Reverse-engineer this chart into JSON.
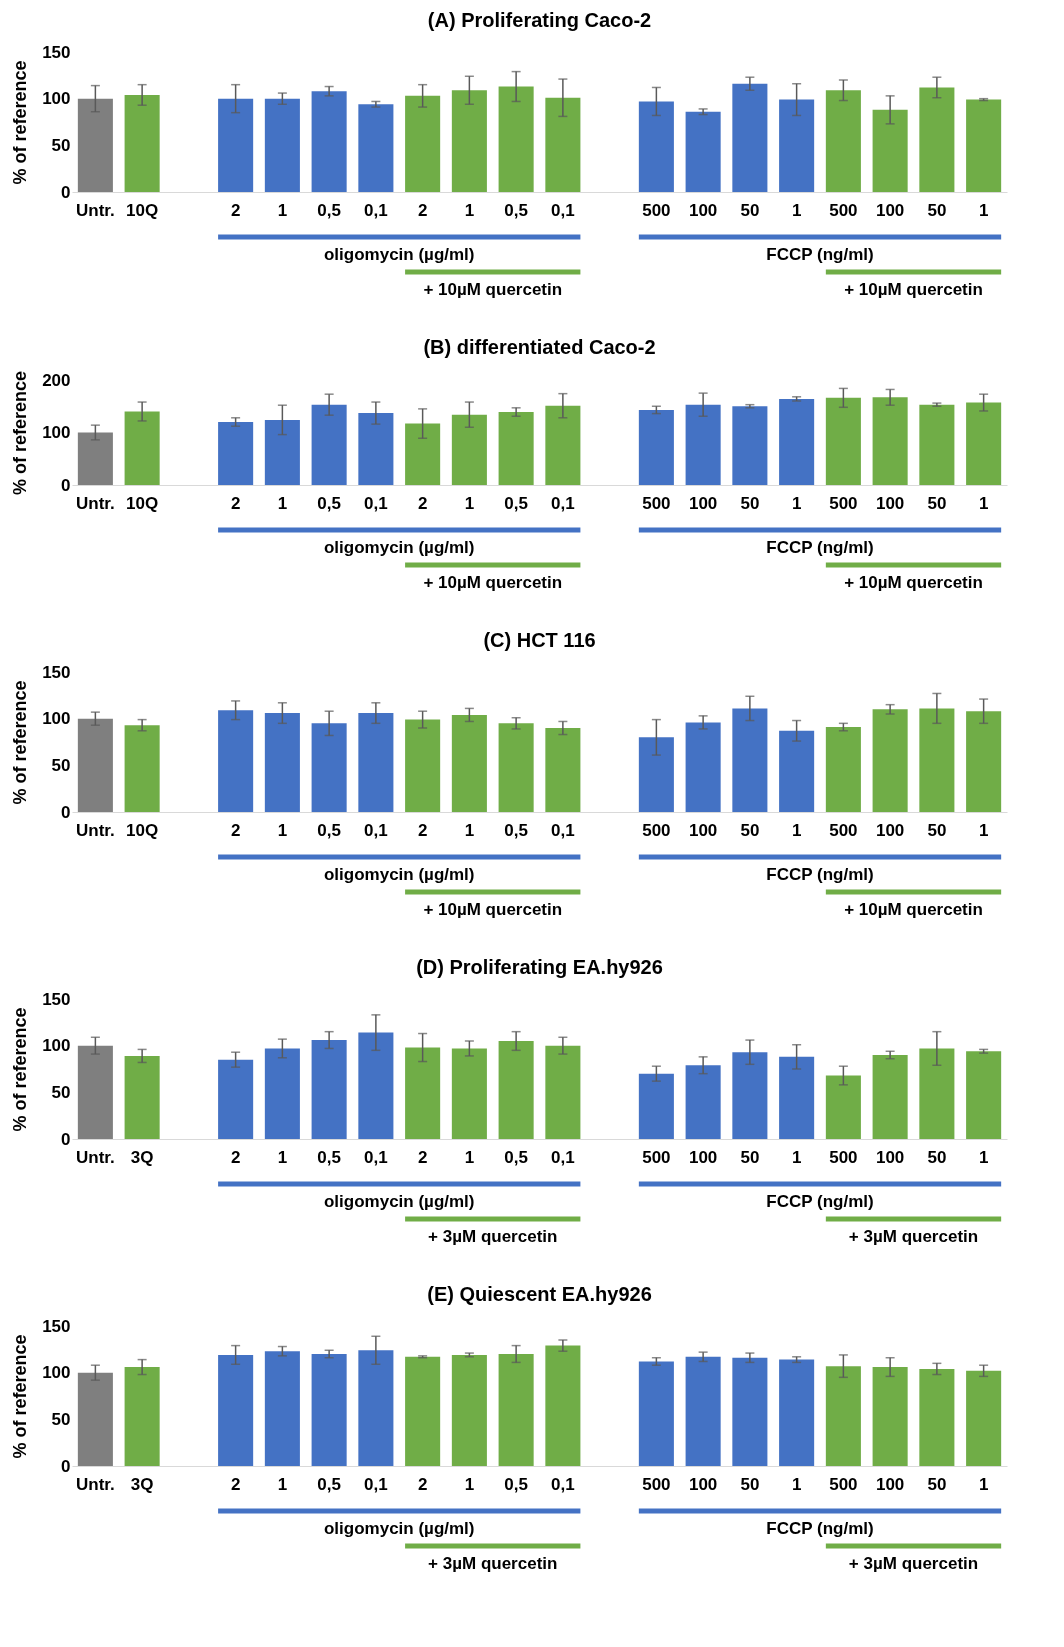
{
  "chart_data": [
    {
      "type": "bar",
      "title": "(A) Proliferating  Caco-2",
      "ylabel": "% of reference",
      "categories": [
        "Untr.",
        "10Q",
        null,
        "2",
        "1",
        "0,5",
        "0,1",
        "2",
        "1",
        "0,5",
        "0,1",
        null,
        "500",
        "100",
        "50",
        "1",
        "500",
        "100",
        "50",
        "1"
      ],
      "values": [
        100,
        104,
        null,
        100,
        100,
        108,
        94,
        103,
        109,
        113,
        101,
        null,
        97,
        86,
        116,
        99,
        109,
        88,
        112,
        99
      ],
      "errors": [
        14,
        11,
        null,
        15,
        6,
        5,
        3,
        12,
        15,
        16,
        20,
        null,
        15,
        3,
        7,
        17,
        11,
        15,
        11,
        1
      ],
      "colors": [
        "#7f7f7f",
        "#70ad47",
        null,
        "#4472c4",
        "#4472c4",
        "#4472c4",
        "#4472c4",
        "#70ad47",
        "#70ad47",
        "#70ad47",
        "#70ad47",
        null,
        "#4472c4",
        "#4472c4",
        "#4472c4",
        "#4472c4",
        "#70ad47",
        "#70ad47",
        "#70ad47",
        "#70ad47"
      ],
      "ylim": [
        0,
        150
      ],
      "yticks": [
        0,
        50,
        100,
        150
      ],
      "annotations": [
        "oligomycin (µg/ml)",
        "+ 10µM quercetin",
        "FCCP (ng/ml)",
        "+ 10µM quercetin"
      ]
    },
    {
      "type": "bar",
      "title": "(B) differentiated Caco-2",
      "ylabel": "% of reference",
      "categories": [
        "Untr.",
        "10Q",
        null,
        "2",
        "1",
        "0,5",
        "0,1",
        "2",
        "1",
        "0,5",
        "0,1",
        null,
        "500",
        "100",
        "50",
        "1",
        "500",
        "100",
        "50",
        "1"
      ],
      "values": [
        100,
        140,
        null,
        120,
        124,
        153,
        137,
        117,
        134,
        139,
        151,
        null,
        143,
        153,
        150,
        164,
        166,
        167,
        153,
        157
      ],
      "errors": [
        14,
        18,
        null,
        8,
        28,
        20,
        21,
        28,
        24,
        8,
        23,
        null,
        7,
        22,
        3,
        4,
        18,
        15,
        3,
        16
      ],
      "colors": [
        "#7f7f7f",
        "#70ad47",
        null,
        "#4472c4",
        "#4472c4",
        "#4472c4",
        "#4472c4",
        "#70ad47",
        "#70ad47",
        "#70ad47",
        "#70ad47",
        null,
        "#4472c4",
        "#4472c4",
        "#4472c4",
        "#4472c4",
        "#70ad47",
        "#70ad47",
        "#70ad47",
        "#70ad47"
      ],
      "ylim": [
        0,
        200
      ],
      "yticks": [
        0,
        100,
        200
      ],
      "annotations": [
        "oligomycin  (µg/ml)",
        "+ 10µM quercetin",
        "FCCP (ng/ml)",
        "+ 10µM quercetin"
      ]
    },
    {
      "type": "bar",
      "title": "(C) HCT 116",
      "ylabel": "% of reference",
      "categories": [
        "Untr.",
        "10Q",
        null,
        "2",
        "1",
        "0,5",
        "0,1",
        "2",
        "1",
        "0,5",
        "0,1",
        null,
        "500",
        "100",
        "50",
        "1",
        "500",
        "100",
        "50",
        "1"
      ],
      "values": [
        100,
        93,
        null,
        109,
        106,
        95,
        106,
        99,
        104,
        95,
        90,
        null,
        80,
        96,
        111,
        87,
        91,
        110,
        111,
        108
      ],
      "errors": [
        7,
        6,
        null,
        10,
        11,
        13,
        11,
        9,
        7,
        6,
        7,
        null,
        19,
        7,
        13,
        11,
        4,
        5,
        16,
        13
      ],
      "colors": [
        "#7f7f7f",
        "#70ad47",
        null,
        "#4472c4",
        "#4472c4",
        "#4472c4",
        "#4472c4",
        "#70ad47",
        "#70ad47",
        "#70ad47",
        "#70ad47",
        null,
        "#4472c4",
        "#4472c4",
        "#4472c4",
        "#4472c4",
        "#70ad47",
        "#70ad47",
        "#70ad47",
        "#70ad47"
      ],
      "ylim": [
        0,
        150
      ],
      "yticks": [
        0,
        50,
        100,
        150
      ],
      "annotations": [
        "oligomycin (µg/ml)",
        "+ 10µM quercetin",
        "FCCP (ng/ml)",
        "+ 10µM quercetin"
      ]
    },
    {
      "type": "bar",
      "title": "(D) Proliferating EA.hy926",
      "ylabel": "% of reference",
      "categories": [
        "Untr.",
        "3Q",
        null,
        "2",
        "1",
        "0,5",
        "0,1",
        "2",
        "1",
        "0,5",
        "0,1",
        null,
        "500",
        "100",
        "50",
        "1",
        "500",
        "100",
        "50",
        "1"
      ],
      "values": [
        100,
        89,
        null,
        85,
        97,
        106,
        114,
        98,
        97,
        105,
        100,
        null,
        70,
        79,
        93,
        88,
        68,
        90,
        97,
        94
      ],
      "errors": [
        9,
        7,
        null,
        8,
        10,
        9,
        19,
        15,
        8,
        10,
        9,
        null,
        8,
        9,
        13,
        13,
        10,
        4,
        18,
        2
      ],
      "colors": [
        "#7f7f7f",
        "#70ad47",
        null,
        "#4472c4",
        "#4472c4",
        "#4472c4",
        "#4472c4",
        "#70ad47",
        "#70ad47",
        "#70ad47",
        "#70ad47",
        null,
        "#4472c4",
        "#4472c4",
        "#4472c4",
        "#4472c4",
        "#70ad47",
        "#70ad47",
        "#70ad47",
        "#70ad47"
      ],
      "ylim": [
        0,
        150
      ],
      "yticks": [
        0,
        50,
        100,
        150
      ],
      "annotations": [
        "oligomycin (µg/ml)",
        "+ 3µM quercetin",
        "FCCP (ng/ml)",
        "+ 3µM quercetin"
      ]
    },
    {
      "type": "bar",
      "title": "(E) Quiescent EA.hy926",
      "ylabel": "% of reference",
      "categories": [
        "Untr.",
        "3Q",
        null,
        "2",
        "1",
        "0,5",
        "0,1",
        "2",
        "1",
        "0,5",
        "0,1",
        null,
        "500",
        "100",
        "50",
        "1",
        "500",
        "100",
        "50",
        "1"
      ],
      "values": [
        100,
        106,
        null,
        119,
        123,
        120,
        124,
        117,
        119,
        120,
        129,
        null,
        112,
        117,
        116,
        114,
        107,
        106,
        104,
        102
      ],
      "errors": [
        8,
        8,
        null,
        10,
        5,
        4,
        15,
        1,
        2,
        9,
        6,
        null,
        4,
        5,
        5,
        3,
        12,
        10,
        6,
        6
      ],
      "colors": [
        "#7f7f7f",
        "#70ad47",
        null,
        "#4472c4",
        "#4472c4",
        "#4472c4",
        "#4472c4",
        "#70ad47",
        "#70ad47",
        "#70ad47",
        "#70ad47",
        null,
        "#4472c4",
        "#4472c4",
        "#4472c4",
        "#4472c4",
        "#70ad47",
        "#70ad47",
        "#70ad47",
        "#70ad47"
      ],
      "ylim": [
        0,
        150
      ],
      "yticks": [
        0,
        50,
        100,
        150
      ],
      "annotations": [
        "oligomycin (µg/ml)",
        "+ 3µM quercetin",
        "FCCP (ng/ml)",
        "+ 3µM quercetin"
      ]
    }
  ]
}
